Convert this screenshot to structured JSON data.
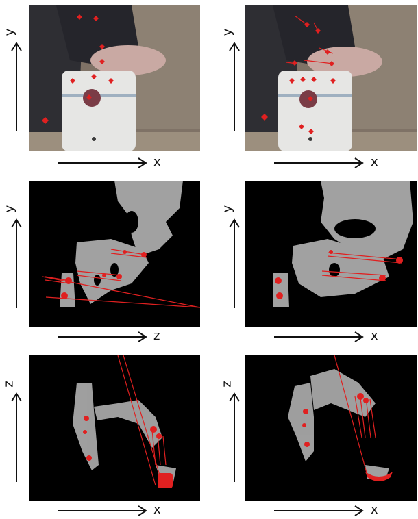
{
  "panels": [
    {
      "id": "p1",
      "kind": "photo",
      "h_axis": "x",
      "v_axis": "y"
    },
    {
      "id": "p2",
      "kind": "photo",
      "h_axis": "x",
      "v_axis": "y"
    },
    {
      "id": "p3",
      "kind": "depth-side",
      "h_axis": "z",
      "v_axis": "y"
    },
    {
      "id": "p4",
      "kind": "depth-front",
      "h_axis": "x",
      "v_axis": "y"
    },
    {
      "id": "p5",
      "kind": "depth-top",
      "h_axis": "x",
      "v_axis": "z"
    },
    {
      "id": "p6",
      "kind": "depth-top",
      "h_axis": "x",
      "v_axis": "z"
    }
  ],
  "colors": {
    "feature_marker": "#e02020",
    "depth_background": "#000000",
    "point_cloud": "#b8b8b8",
    "photo_wall": "#8a7d70",
    "photo_mug": "#e8e8e6"
  }
}
